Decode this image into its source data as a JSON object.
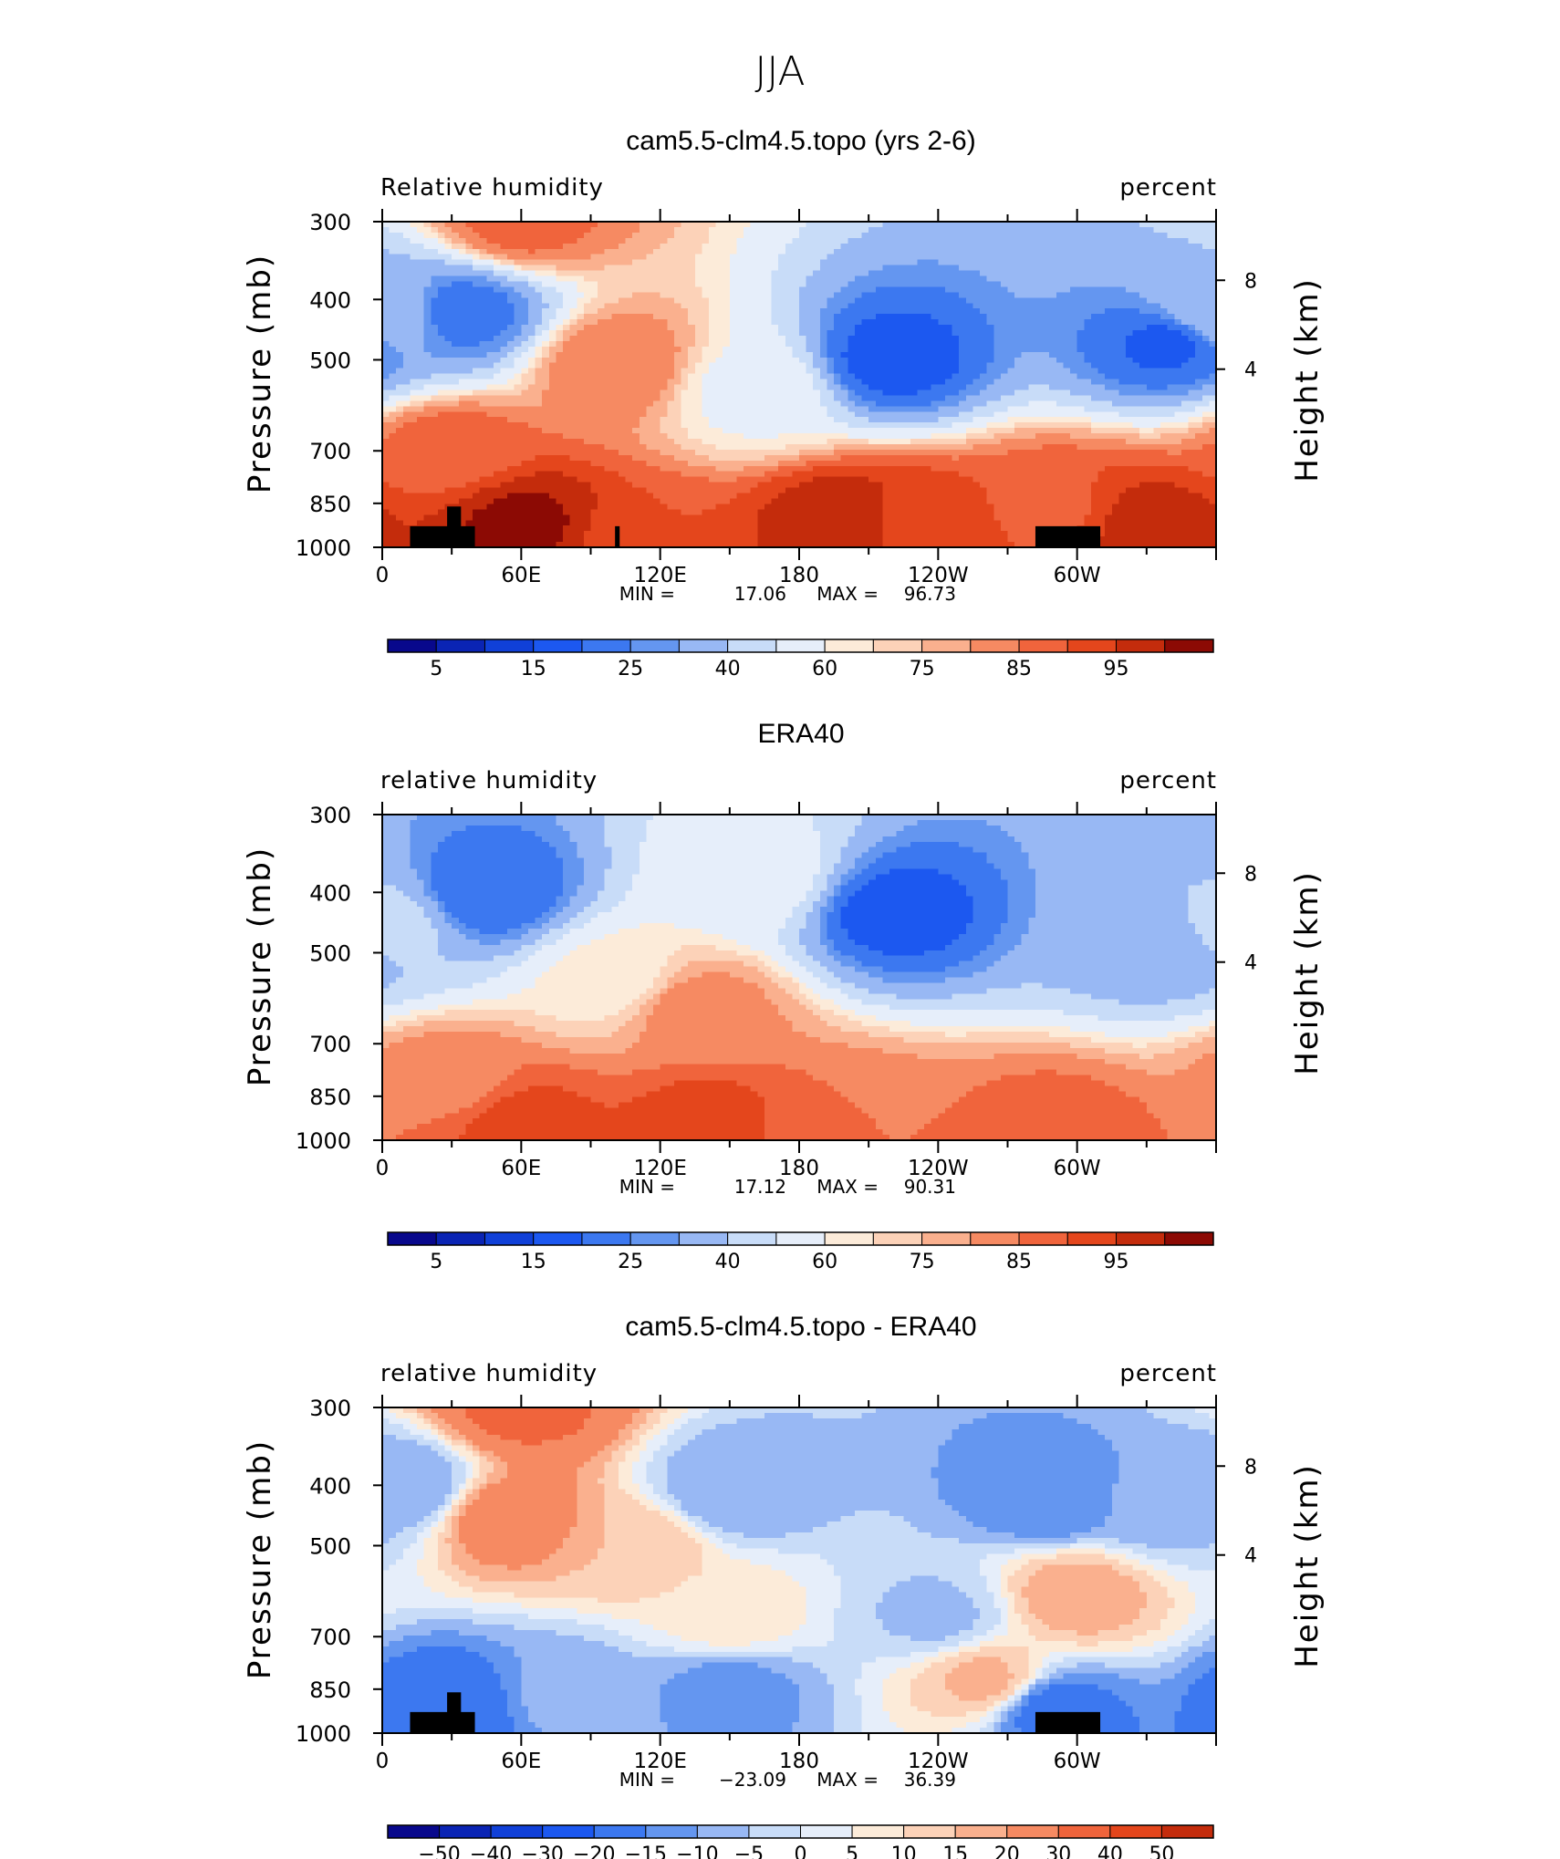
{
  "figure": {
    "title": "JJA"
  },
  "palettes": {
    "rh": [
      "#08088c",
      "#0a24b4",
      "#1040d8",
      "#1c58f0",
      "#3c78f0",
      "#6496f0",
      "#98b8f4",
      "#c8dcf8",
      "#e6eefa",
      "#fcebd9",
      "#fcd2b8",
      "#fab08e",
      "#f68a62",
      "#f0643c",
      "#e4461c",
      "#c42c0c",
      "#8c0a04"
    ],
    "diff": [
      "#08088c",
      "#0a24b4",
      "#1040d8",
      "#1c58f0",
      "#3c78f0",
      "#6496f0",
      "#98b8f4",
      "#c8dcf8",
      "#e6eefa",
      "#fcebd9",
      "#fcd2b8",
      "#fab08e",
      "#f68a62",
      "#f0643c",
      "#e4461c",
      "#c42c0c",
      "#8c0a04"
    ]
  },
  "shared_axes": {
    "x_ticks": [
      "0",
      "60E",
      "120E",
      "180",
      "120W",
      "60W"
    ],
    "y_ticks": [
      "300",
      "400",
      "500",
      "700",
      "850",
      "1000"
    ],
    "y_label": "Pressure (mb)",
    "y2_ticks": [
      "8",
      "4"
    ],
    "y2_label": "Height (km)"
  },
  "panels": [
    {
      "title": "cam5.5-clm4.5.topo (yrs 2-6)",
      "left_label": "Relative humidity",
      "right_label": "percent",
      "min_max": {
        "min_label": "MIN =",
        "min": "17.06",
        "max_label": "MAX =",
        "max": "96.73"
      },
      "colorbar_labels": [
        "5",
        "15",
        "25",
        "40",
        "60",
        "75",
        "85",
        "95"
      ],
      "topography": true
    },
    {
      "title": "ERA40",
      "left_label": "relative humidity",
      "right_label": "percent",
      "min_max": {
        "min_label": "MIN =",
        "min": "17.12",
        "max_label": "MAX =",
        "max": "90.31"
      },
      "colorbar_labels": [
        "5",
        "15",
        "25",
        "40",
        "60",
        "75",
        "85",
        "95"
      ],
      "topography": false
    },
    {
      "title": "cam5.5-clm4.5.topo - ERA40",
      "left_label": "relative humidity",
      "right_label": "percent",
      "min_max": {
        "min_label": "MIN =",
        "min": "−23.09",
        "max_label": "MAX =",
        "max": "36.39"
      },
      "colorbar_labels": [
        "−50",
        "−40",
        "−30",
        "−20",
        "−15",
        "−10",
        "−5",
        "0",
        "5",
        "10",
        "15",
        "20",
        "30",
        "40",
        "50"
      ],
      "topography": true
    }
  ],
  "chart_data": [
    {
      "type": "heatmap",
      "title": "cam5.5-clm4.5.topo (yrs 2-6)",
      "variable": "Relative humidity",
      "units": "percent",
      "x_ticks": [
        "0",
        "60E",
        "120E",
        "180",
        "120W",
        "60W"
      ],
      "y_ticks_mb": [
        300,
        400,
        500,
        700,
        850,
        1000
      ],
      "height_ticks_km": [
        8,
        4
      ],
      "min": 17.06,
      "max": 96.73,
      "contour_levels": [
        5,
        10,
        15,
        20,
        25,
        30,
        40,
        50,
        60,
        65,
        70,
        75,
        80,
        85,
        90,
        95
      ],
      "features": [
        {
          "x": 115,
          "p": 985,
          "v": 85
        },
        {
          "x": 60,
          "p": 915,
          "v": 96
        },
        {
          "x": 200,
          "p": 915,
          "v": 94
        },
        {
          "x": 230,
          "p": 915,
          "v": 88
        },
        {
          "x": 290,
          "p": 860,
          "v": 84
        },
        {
          "x": 330,
          "p": 915,
          "v": 92
        },
        {
          "x": 30,
          "p": 700,
          "v": 83
        },
        {
          "x": 100,
          "p": 510,
          "v": 80
        },
        {
          "x": 60,
          "p": 300,
          "v": 82
        },
        {
          "x": 35,
          "p": 420,
          "v": 22
        },
        {
          "x": 220,
          "p": 500,
          "v": 18
        },
        {
          "x": 340,
          "p": 470,
          "v": 19
        },
        {
          "x": 0,
          "p": 420,
          "v": 40
        },
        {
          "x": 160,
          "p": 560,
          "v": 58
        }
      ]
    },
    {
      "type": "heatmap",
      "title": "ERA40",
      "variable": "relative humidity",
      "units": "percent",
      "x_ticks": [
        "0",
        "60E",
        "120E",
        "180",
        "120W",
        "60W"
      ],
      "y_ticks_mb": [
        300,
        400,
        500,
        700,
        850,
        1000
      ],
      "height_ticks_km": [
        8,
        4
      ],
      "min": 17.12,
      "max": 90.31,
      "contour_levels": [
        5,
        10,
        15,
        20,
        25,
        30,
        40,
        50,
        60,
        65,
        70,
        75,
        80,
        85,
        90,
        95
      ],
      "features": [
        {
          "x": 60,
          "p": 940,
          "v": 87
        },
        {
          "x": 140,
          "p": 940,
          "v": 87
        },
        {
          "x": 200,
          "p": 940,
          "v": 80
        },
        {
          "x": 290,
          "p": 960,
          "v": 82
        },
        {
          "x": 30,
          "p": 800,
          "v": 78
        },
        {
          "x": 135,
          "p": 620,
          "v": 78
        },
        {
          "x": 45,
          "p": 400,
          "v": 20
        },
        {
          "x": 220,
          "p": 430,
          "v": 18
        },
        {
          "x": 340,
          "p": 470,
          "v": 30
        },
        {
          "x": 0,
          "p": 450,
          "v": 45
        },
        {
          "x": 100,
          "p": 550,
          "v": 62
        },
        {
          "x": 160,
          "p": 380,
          "v": 56
        }
      ]
    },
    {
      "type": "heatmap",
      "title": "cam5.5-clm4.5.topo - ERA40",
      "variable": "relative humidity",
      "units": "percent",
      "x_ticks": [
        "0",
        "60E",
        "120E",
        "180",
        "120W",
        "60W"
      ],
      "y_ticks_mb": [
        300,
        400,
        500,
        700,
        850,
        1000
      ],
      "height_ticks_km": [
        8,
        4
      ],
      "min": -23.09,
      "max": 36.39,
      "contour_levels": [
        -50,
        -40,
        -30,
        -20,
        -15,
        -10,
        -5,
        0,
        5,
        10,
        15,
        20,
        30,
        40,
        50
      ],
      "features": [
        {
          "x": 55,
          "p": 450,
          "v": 25
        },
        {
          "x": 60,
          "p": 300,
          "v": 32
        },
        {
          "x": 110,
          "p": 500,
          "v": 15
        },
        {
          "x": 300,
          "p": 600,
          "v": 18
        },
        {
          "x": 260,
          "p": 820,
          "v": 16
        },
        {
          "x": 150,
          "p": 650,
          "v": 8
        },
        {
          "x": 10,
          "p": 400,
          "v": -10
        },
        {
          "x": 30,
          "p": 900,
          "v": -20
        },
        {
          "x": 290,
          "p": 920,
          "v": -18
        },
        {
          "x": 290,
          "p": 420,
          "v": -15
        },
        {
          "x": 150,
          "p": 410,
          "v": -10
        },
        {
          "x": 335,
          "p": 430,
          "v": -8
        },
        {
          "x": 80,
          "p": 860,
          "v": -8
        },
        {
          "x": 150,
          "p": 850,
          "v": -12
        },
        {
          "x": 240,
          "p": 650,
          "v": -6
        }
      ]
    }
  ]
}
